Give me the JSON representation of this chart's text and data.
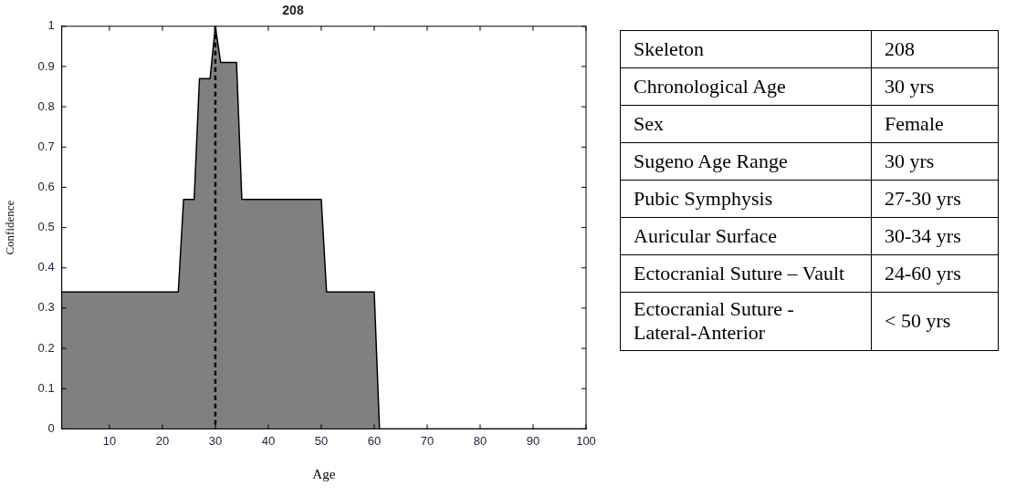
{
  "chart_data": [
    {
      "type": "area",
      "title": "208",
      "xlabel": "Age",
      "ylabel": "Confidence",
      "x": [
        1,
        23,
        24,
        26,
        27,
        29,
        30,
        31,
        34,
        35,
        50,
        51,
        60,
        61,
        100
      ],
      "series": [
        {
          "color": "#808080",
          "values": [
            0.34,
            0.34,
            0.57,
            0.57,
            0.87,
            0.87,
            1,
            0.91,
            0.91,
            0.57,
            0.57,
            0.34,
            0.34,
            0,
            0
          ]
        }
      ],
      "xlim": [
        1,
        100
      ],
      "xticks": [
        10,
        20,
        30,
        40,
        50,
        60,
        70,
        80,
        90,
        100
      ],
      "ylim": [
        0,
        1
      ],
      "yticks": [
        0,
        0.1,
        0.2,
        0.3,
        0.4,
        0.5,
        0.6,
        0.7,
        0.8,
        0.9,
        1
      ],
      "ref_lines": [
        {
          "axis": "x",
          "value": 30,
          "color": "#000000",
          "line_style": "dashed"
        }
      ],
      "grid": false,
      "legend": false
    },
    {
      "type": "other",
      "categories": [
        "Skeleton",
        "Chronological Age",
        "Sex",
        "Sugeno Age Range",
        "Pubic Symphysis",
        "Auricular Surface",
        "Ectocranial Suture – Vault",
        "Ectocranial Suture - Lateral-Anterior"
      ],
      "value_labels": [
        "208",
        "30 yrs",
        "Female",
        "30 yrs",
        "27-30 yrs",
        "30-34 yrs",
        "24-60 yrs",
        "< 50 yrs"
      ]
    }
  ]
}
